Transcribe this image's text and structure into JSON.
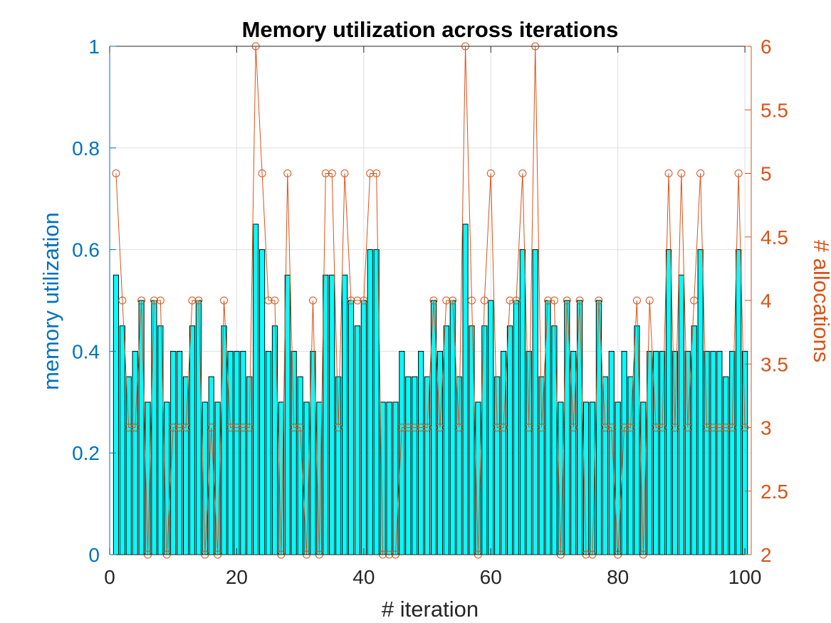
{
  "chart_data": {
    "type": "bar",
    "title": "Memory utilization across iterations",
    "xlabel": "# iteration",
    "ylabel": "memory utilization",
    "ylabel_right": "# allocations",
    "xlim": [
      0,
      101
    ],
    "ylim": [
      0,
      1
    ],
    "ylim_right": [
      2,
      6
    ],
    "xticks": [
      "0",
      "20",
      "40",
      "60",
      "80",
      "100"
    ],
    "yticks": [
      "0",
      "0.2",
      "0.4",
      "0.6",
      "0.8",
      "1"
    ],
    "yticks_right": [
      "2",
      "2.5",
      "3",
      "3.5",
      "4",
      "4.5",
      "5",
      "5.5",
      "6"
    ],
    "grid": true,
    "colors": {
      "bar_fill": "#00FFFF",
      "bar_edge": "#000000",
      "left_axis": "#0072BD",
      "right_axis": "#D95319"
    },
    "x": [
      1,
      2,
      3,
      4,
      5,
      6,
      7,
      8,
      9,
      10,
      11,
      12,
      13,
      14,
      15,
      16,
      17,
      18,
      19,
      20,
      21,
      22,
      23,
      24,
      25,
      26,
      27,
      28,
      29,
      30,
      31,
      32,
      33,
      34,
      35,
      36,
      37,
      38,
      39,
      40,
      41,
      42,
      43,
      44,
      45,
      46,
      47,
      48,
      49,
      50,
      51,
      52,
      53,
      54,
      55,
      56,
      57,
      58,
      59,
      60,
      61,
      62,
      63,
      64,
      65,
      66,
      67,
      68,
      69,
      70,
      71,
      72,
      73,
      74,
      75,
      76,
      77,
      78,
      79,
      80,
      81,
      82,
      83,
      84,
      85,
      86,
      87,
      88,
      89,
      90,
      91,
      92,
      93,
      94,
      95,
      96,
      97,
      98,
      99,
      100
    ],
    "series": [
      {
        "axis": "left",
        "type": "bar",
        "values": [
          0.55,
          0.45,
          0.35,
          0.4,
          0.5,
          0.3,
          0.5,
          0.45,
          0.3,
          0.4,
          0.4,
          0.35,
          0.45,
          0.5,
          0.3,
          0.35,
          0.3,
          0.45,
          0.4,
          0.4,
          0.4,
          0.35,
          0.65,
          0.6,
          0.4,
          0.45,
          0.3,
          0.55,
          0.4,
          0.35,
          0.3,
          0.4,
          0.3,
          0.55,
          0.55,
          0.35,
          0.55,
          0.5,
          0.45,
          0.5,
          0.6,
          0.6,
          0.3,
          0.3,
          0.3,
          0.4,
          0.35,
          0.35,
          0.4,
          0.35,
          0.5,
          0.4,
          0.45,
          0.5,
          0.35,
          0.65,
          0.45,
          0.3,
          0.45,
          0.5,
          0.35,
          0.4,
          0.45,
          0.5,
          0.6,
          0.4,
          0.6,
          0.35,
          0.5,
          0.45,
          0.3,
          0.5,
          0.4,
          0.5,
          0.3,
          0.3,
          0.5,
          0.35,
          0.4,
          0.3,
          0.4,
          0.35,
          0.45,
          0.3,
          0.4,
          0.4,
          0.4,
          0.6,
          0.4,
          0.55,
          0.4,
          0.45,
          0.6,
          0.4,
          0.4,
          0.4,
          0.35,
          0.4,
          0.6,
          0.4
        ]
      },
      {
        "axis": "right",
        "type": "line",
        "marker": "circle",
        "values": [
          5,
          4,
          3,
          3,
          4,
          2,
          4,
          4,
          2,
          3,
          3,
          3,
          4,
          4,
          2,
          3,
          2,
          4,
          3,
          3,
          3,
          3,
          6,
          5,
          4,
          4,
          2,
          5,
          3,
          3,
          2,
          4,
          2,
          5,
          5,
          3,
          5,
          4,
          4,
          4,
          5,
          5,
          2,
          2,
          2,
          3,
          3,
          3,
          3,
          3,
          4,
          3,
          4,
          4,
          3,
          6,
          4,
          2,
          4,
          5,
          3,
          3,
          4,
          4,
          5,
          3,
          6,
          3,
          4,
          4,
          2,
          4,
          3,
          4,
          2,
          2,
          4,
          3,
          3,
          2,
          3,
          3,
          4,
          2,
          4,
          3,
          3,
          5,
          3,
          5,
          3,
          4,
          5,
          3,
          3,
          3,
          3,
          3,
          5,
          3
        ]
      }
    ]
  }
}
